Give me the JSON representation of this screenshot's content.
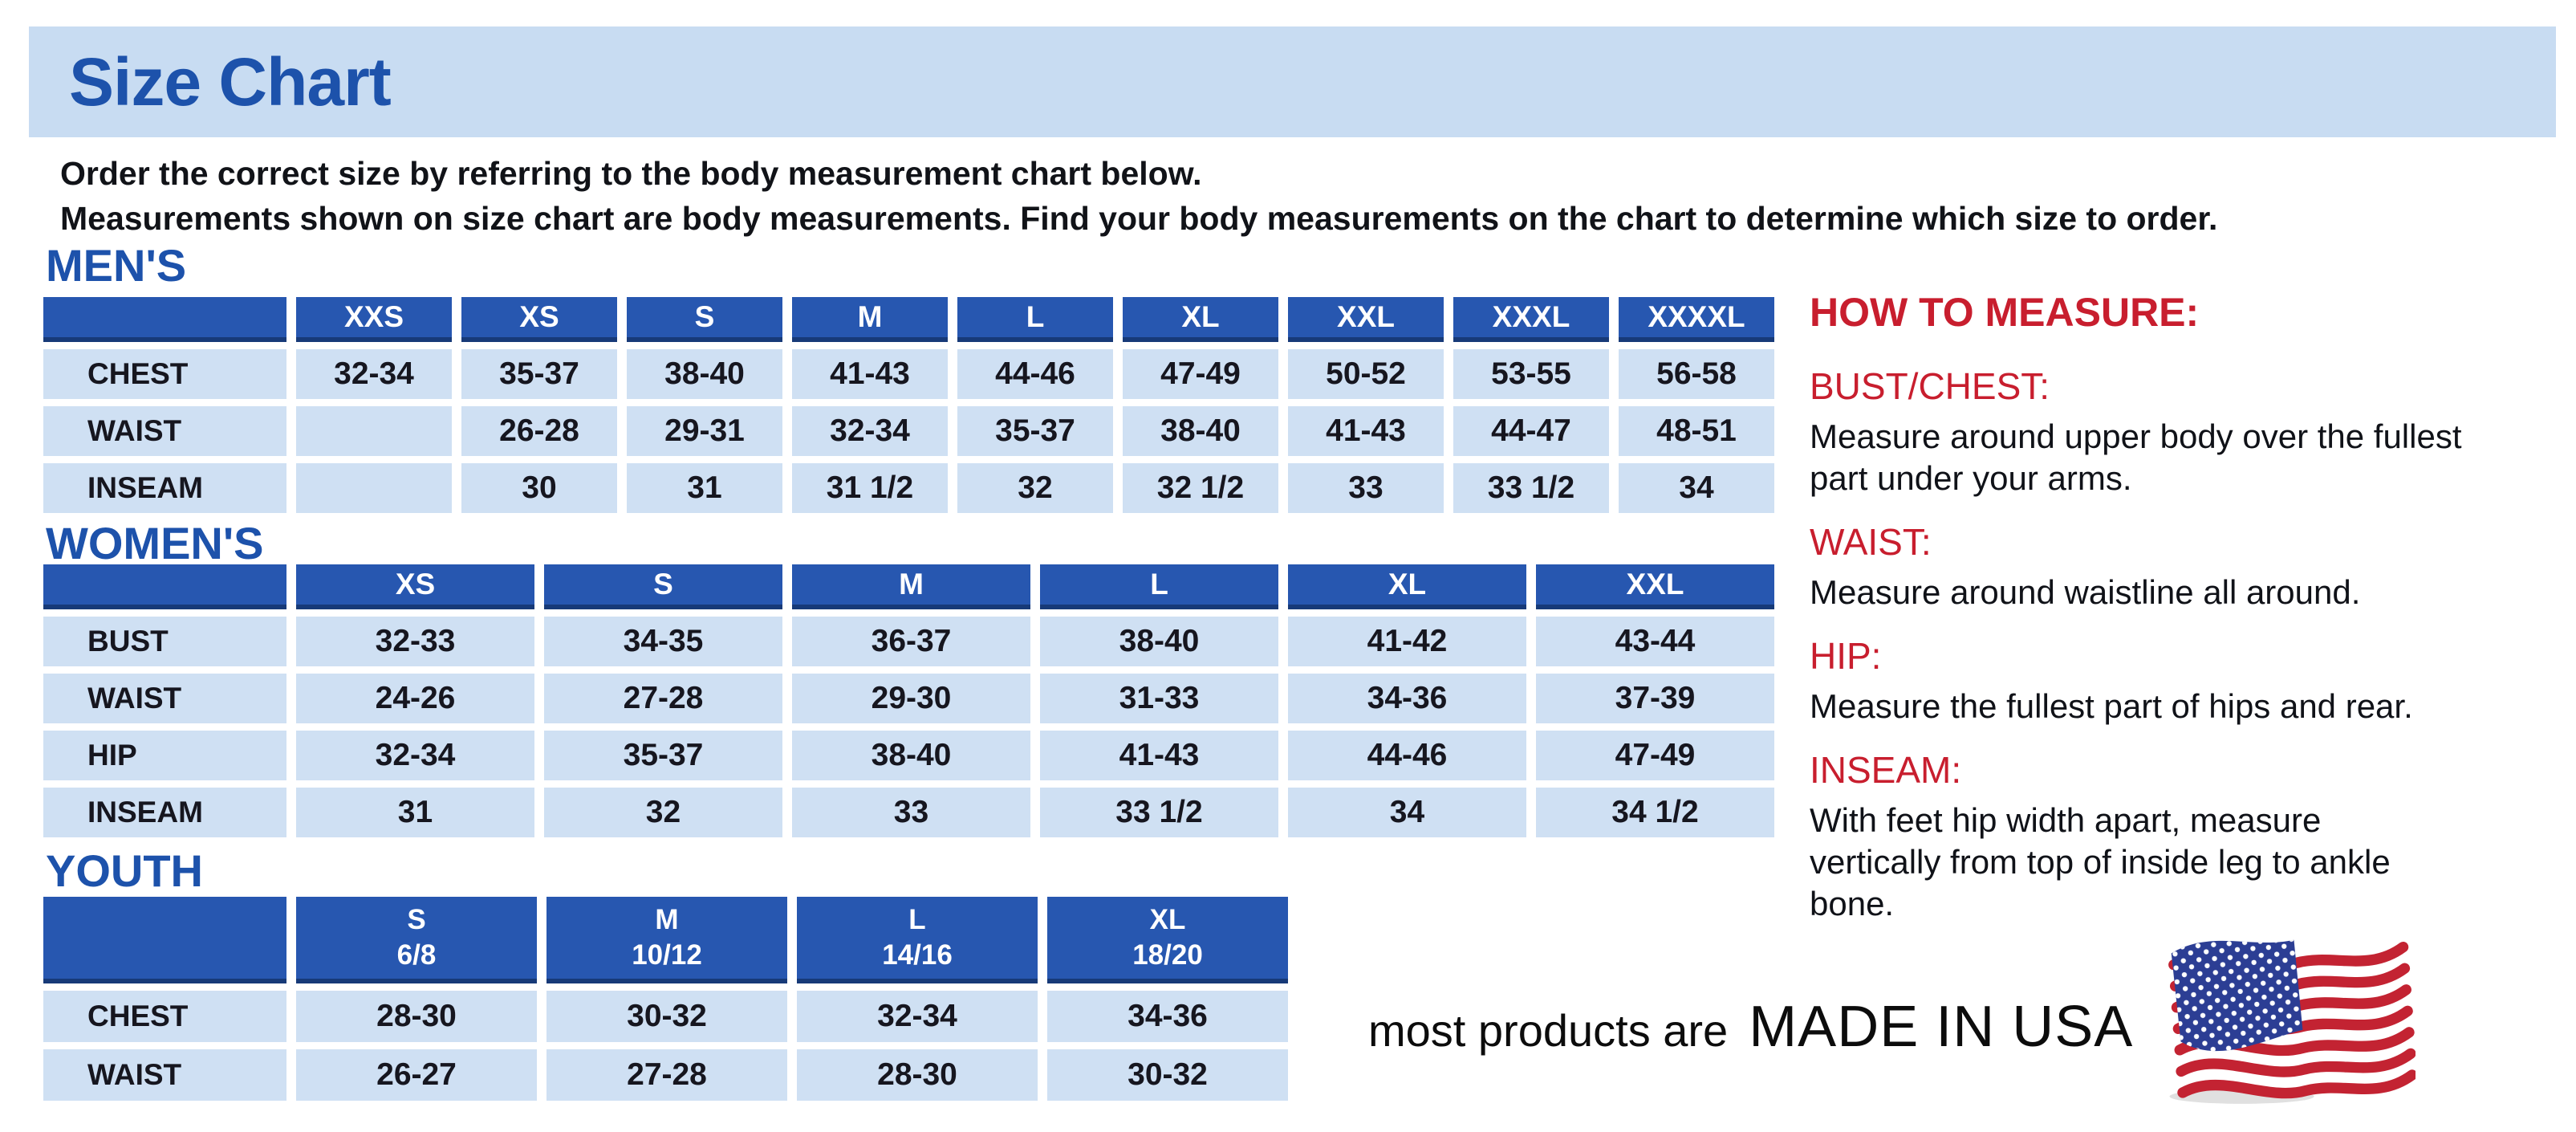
{
  "colors": {
    "banner_bg": "#c8dcf2",
    "title_blue": "#1d52ab",
    "header_blue": "#2757b0",
    "header_blue_dark": "#173a78",
    "cell_blue": "#cfe0f3",
    "text_dark": "#16161f",
    "accent_red": "#c81e2e"
  },
  "banner": {
    "title": "Size Chart"
  },
  "intro": {
    "line1": "Order the correct size by referring to the body measurement chart below.",
    "line2": "Measurements shown on size chart are body measurements.  Find your body measurements on the chart to determine which size to order."
  },
  "sections": {
    "mens": {
      "heading": "MEN'S",
      "columns": [
        "XXS",
        "XS",
        "S",
        "M",
        "L",
        "XL",
        "XXL",
        "XXXL",
        "XXXXL"
      ],
      "rows": [
        {
          "label": "CHEST",
          "values": [
            "32-34",
            "35-37",
            "38-40",
            "41-43",
            "44-46",
            "47-49",
            "50-52",
            "53-55",
            "56-58"
          ]
        },
        {
          "label": "WAIST",
          "values": [
            "",
            "26-28",
            "29-31",
            "32-34",
            "35-37",
            "38-40",
            "41-43",
            "44-47",
            "48-51"
          ]
        },
        {
          "label": "INSEAM",
          "values": [
            "",
            "30",
            "31",
            "31 1/2",
            "32",
            "32 1/2",
            "33",
            "33 1/2",
            "34"
          ]
        }
      ]
    },
    "womens": {
      "heading": "WOMEN'S",
      "columns": [
        "XS",
        "S",
        "M",
        "L",
        "XL",
        "XXL"
      ],
      "rows": [
        {
          "label": "BUST",
          "values": [
            "32-33",
            "34-35",
            "36-37",
            "38-40",
            "41-42",
            "43-44"
          ]
        },
        {
          "label": "WAIST",
          "values": [
            "24-26",
            "27-28",
            "29-30",
            "31-33",
            "34-36",
            "37-39"
          ]
        },
        {
          "label": "HIP",
          "values": [
            "32-34",
            "35-37",
            "38-40",
            "41-43",
            "44-46",
            "47-49"
          ]
        },
        {
          "label": "INSEAM",
          "values": [
            "31",
            "32",
            "33",
            "33 1/2",
            "34",
            "34 1/2"
          ]
        }
      ]
    },
    "youth": {
      "heading": "YOUTH",
      "columns": [
        {
          "size": "S",
          "range": "6/8"
        },
        {
          "size": "M",
          "range": "10/12"
        },
        {
          "size": "L",
          "range": "14/16"
        },
        {
          "size": "XL",
          "range": "18/20"
        }
      ],
      "rows": [
        {
          "label": "CHEST",
          "values": [
            "28-30",
            "30-32",
            "32-34",
            "34-36"
          ]
        },
        {
          "label": "WAIST",
          "values": [
            "26-27",
            "27-28",
            "28-30",
            "30-32"
          ]
        }
      ]
    }
  },
  "how_to_measure": {
    "heading": "HOW TO MEASURE:",
    "items": [
      {
        "label": "BUST/CHEST:",
        "text": "Measure around upper body over the fullest part under your arms."
      },
      {
        "label": "WAIST:",
        "text": "Measure around waistline all around."
      },
      {
        "label": "HIP:",
        "text": "Measure the fullest part of hips and rear."
      },
      {
        "label": "INSEAM:",
        "text": "With feet hip width apart, measure vertically from top of inside leg to ankle bone."
      }
    ]
  },
  "footer": {
    "lead": "most products are",
    "emphasis": "MADE IN USA",
    "flag_icon": "usa-flag-icon"
  }
}
